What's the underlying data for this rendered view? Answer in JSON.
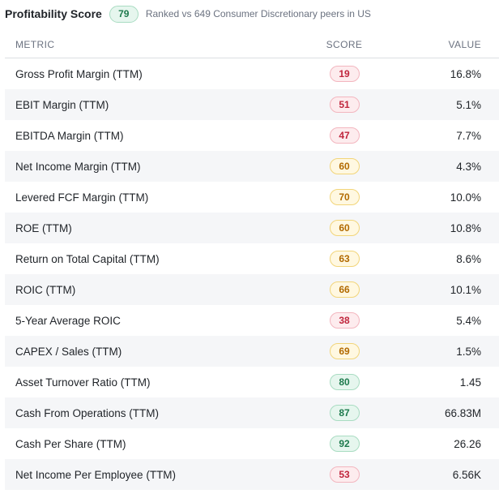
{
  "header": {
    "title": "Profitability Score",
    "score": "79",
    "rank_text": "Ranked vs 649 Consumer Discretionary peers in US"
  },
  "table": {
    "columns": {
      "metric": "METRIC",
      "score": "SCORE",
      "value": "VALUE"
    },
    "rows": [
      {
        "metric": "Gross Profit Margin (TTM)",
        "score": "19",
        "value": "16.8%",
        "level": "low"
      },
      {
        "metric": "EBIT Margin (TTM)",
        "score": "51",
        "value": "5.1%",
        "level": "low"
      },
      {
        "metric": "EBITDA Margin (TTM)",
        "score": "47",
        "value": "7.7%",
        "level": "low"
      },
      {
        "metric": "Net Income Margin (TTM)",
        "score": "60",
        "value": "4.3%",
        "level": "mid"
      },
      {
        "metric": "Levered FCF Margin (TTM)",
        "score": "70",
        "value": "10.0%",
        "level": "mid"
      },
      {
        "metric": "ROE (TTM)",
        "score": "60",
        "value": "10.8%",
        "level": "mid"
      },
      {
        "metric": "Return on Total Capital (TTM)",
        "score": "63",
        "value": "8.6%",
        "level": "mid"
      },
      {
        "metric": "ROIC (TTM)",
        "score": "66",
        "value": "10.1%",
        "level": "mid"
      },
      {
        "metric": "5-Year Average ROIC",
        "score": "38",
        "value": "5.4%",
        "level": "low"
      },
      {
        "metric": "CAPEX / Sales (TTM)",
        "score": "69",
        "value": "1.5%",
        "level": "mid"
      },
      {
        "metric": "Asset Turnover Ratio (TTM)",
        "score": "80",
        "value": "1.45",
        "level": "high"
      },
      {
        "metric": "Cash From Operations (TTM)",
        "score": "87",
        "value": "66.83M",
        "level": "high"
      },
      {
        "metric": "Cash Per Share (TTM)",
        "score": "92",
        "value": "26.26",
        "level": "high"
      },
      {
        "metric": "Net Income Per Employee (TTM)",
        "score": "53",
        "value": "6.56K",
        "level": "low"
      }
    ]
  },
  "colors": {
    "low": "#c0263d",
    "mid": "#b26a00",
    "high": "#1e7a4d"
  }
}
